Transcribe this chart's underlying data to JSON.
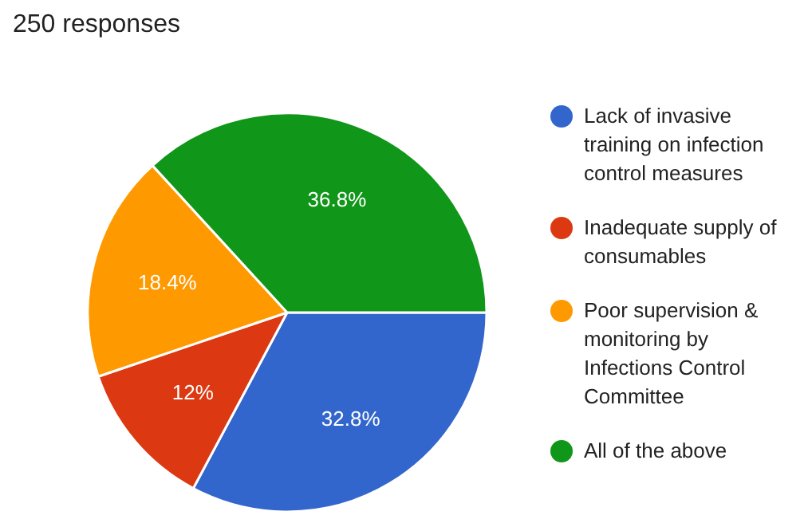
{
  "chart_data": {
    "type": "pie",
    "title": "250 responses",
    "categories": [
      "Lack of invasive training on infection control measures",
      "Inadequate supply of consumables",
      "Poor supervision & monitoring by Infections Control Committee",
      "All of the above"
    ],
    "values": [
      32.8,
      12,
      18.4,
      36.8
    ],
    "colors": [
      "#3366cc",
      "#dc3912",
      "#ff9900",
      "#109618"
    ],
    "value_labels": [
      "32.8%",
      "12%",
      "18.4%",
      "36.8%"
    ],
    "legend": "right"
  }
}
